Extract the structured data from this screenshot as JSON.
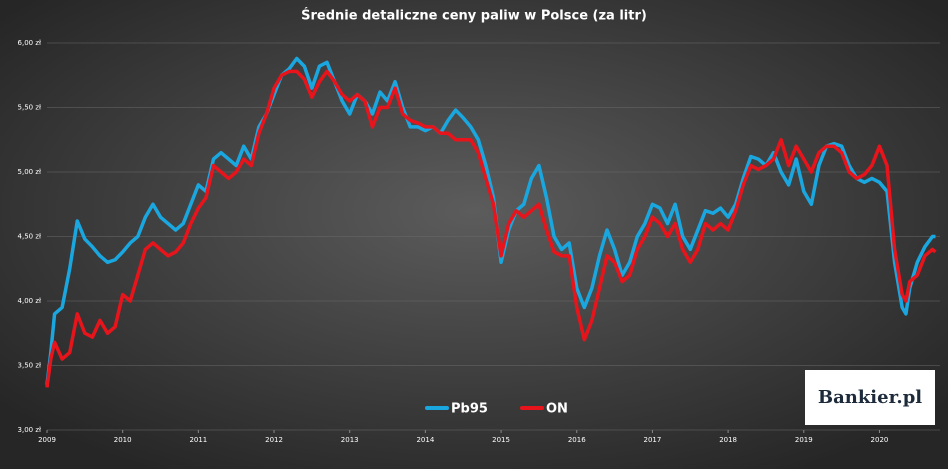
{
  "chart_data": {
    "type": "line",
    "title": "Średnie detaliczne ceny paliw w Polsce (za litr)",
    "watermark": "Bankier.pl",
    "x": [
      2009.0,
      2009.05,
      2009.1,
      2009.2,
      2009.3,
      2009.4,
      2009.5,
      2009.6,
      2009.7,
      2009.8,
      2009.9,
      2010.0,
      2010.1,
      2010.2,
      2010.3,
      2010.4,
      2010.5,
      2010.6,
      2010.7,
      2010.8,
      2010.9,
      2011.0,
      2011.1,
      2011.2,
      2011.3,
      2011.4,
      2011.5,
      2011.6,
      2011.7,
      2011.8,
      2011.9,
      2012.0,
      2012.1,
      2012.2,
      2012.3,
      2012.4,
      2012.5,
      2012.6,
      2012.7,
      2012.8,
      2012.9,
      2013.0,
      2013.1,
      2013.2,
      2013.3,
      2013.4,
      2013.5,
      2013.6,
      2013.7,
      2013.8,
      2013.9,
      2014.0,
      2014.1,
      2014.2,
      2014.3,
      2014.4,
      2014.5,
      2014.6,
      2014.7,
      2014.8,
      2014.9,
      2015.0,
      2015.1,
      2015.2,
      2015.3,
      2015.4,
      2015.5,
      2015.6,
      2015.7,
      2015.8,
      2015.9,
      2016.0,
      2016.1,
      2016.2,
      2016.3,
      2016.4,
      2016.5,
      2016.6,
      2016.7,
      2016.8,
      2016.9,
      2017.0,
      2017.1,
      2017.2,
      2017.3,
      2017.4,
      2017.5,
      2017.6,
      2017.7,
      2017.8,
      2017.9,
      2018.0,
      2018.1,
      2018.2,
      2018.3,
      2018.4,
      2018.5,
      2018.6,
      2018.7,
      2018.8,
      2018.9,
      2019.0,
      2019.1,
      2019.2,
      2019.3,
      2019.4,
      2019.5,
      2019.6,
      2019.7,
      2019.8,
      2019.9,
      2020.0,
      2020.1,
      2020.2,
      2020.3,
      2020.35,
      2020.4,
      2020.5,
      2020.6,
      2020.7,
      2020.74
    ],
    "series": [
      {
        "name": "Pb95",
        "color": "#1aa7e0",
        "values": [
          3.35,
          3.6,
          3.9,
          3.95,
          4.25,
          4.62,
          4.48,
          4.42,
          4.35,
          4.3,
          4.32,
          4.38,
          4.45,
          4.5,
          4.65,
          4.75,
          4.65,
          4.6,
          4.55,
          4.6,
          4.75,
          4.9,
          4.85,
          5.1,
          5.15,
          5.1,
          5.05,
          5.2,
          5.1,
          5.35,
          5.45,
          5.6,
          5.75,
          5.8,
          5.88,
          5.82,
          5.65,
          5.82,
          5.85,
          5.7,
          5.55,
          5.45,
          5.6,
          5.55,
          5.45,
          5.62,
          5.55,
          5.7,
          5.5,
          5.35,
          5.35,
          5.32,
          5.35,
          5.3,
          5.4,
          5.48,
          5.42,
          5.35,
          5.25,
          5.05,
          4.8,
          4.3,
          4.55,
          4.7,
          4.75,
          4.95,
          5.05,
          4.8,
          4.5,
          4.4,
          4.45,
          4.1,
          3.95,
          4.1,
          4.35,
          4.55,
          4.4,
          4.2,
          4.3,
          4.5,
          4.6,
          4.75,
          4.72,
          4.6,
          4.75,
          4.5,
          4.4,
          4.55,
          4.7,
          4.68,
          4.72,
          4.65,
          4.75,
          4.95,
          5.12,
          5.1,
          5.05,
          5.15,
          5.0,
          4.9,
          5.1,
          4.85,
          4.75,
          5.05,
          5.2,
          5.22,
          5.2,
          5.05,
          4.95,
          4.92,
          4.95,
          4.92,
          4.85,
          4.3,
          3.95,
          3.9,
          4.1,
          4.3,
          4.42,
          4.5,
          4.5
        ]
      },
      {
        "name": "ON",
        "color": "#e8141b",
        "values": [
          3.33,
          3.55,
          3.68,
          3.55,
          3.6,
          3.9,
          3.75,
          3.72,
          3.85,
          3.75,
          3.8,
          4.05,
          4.0,
          4.2,
          4.4,
          4.45,
          4.4,
          4.35,
          4.38,
          4.45,
          4.6,
          4.72,
          4.8,
          5.05,
          5.0,
          4.95,
          5.0,
          5.1,
          5.05,
          5.3,
          5.45,
          5.65,
          5.75,
          5.78,
          5.78,
          5.72,
          5.58,
          5.7,
          5.78,
          5.7,
          5.6,
          5.55,
          5.6,
          5.55,
          5.35,
          5.5,
          5.5,
          5.65,
          5.45,
          5.4,
          5.38,
          5.35,
          5.35,
          5.3,
          5.3,
          5.25,
          5.25,
          5.25,
          5.15,
          4.95,
          4.75,
          4.35,
          4.6,
          4.7,
          4.65,
          4.7,
          4.75,
          4.55,
          4.38,
          4.35,
          4.35,
          3.95,
          3.7,
          3.85,
          4.1,
          4.35,
          4.3,
          4.15,
          4.2,
          4.4,
          4.5,
          4.65,
          4.6,
          4.5,
          4.6,
          4.4,
          4.3,
          4.4,
          4.6,
          4.55,
          4.6,
          4.55,
          4.7,
          4.9,
          5.05,
          5.02,
          5.05,
          5.1,
          5.25,
          5.05,
          5.2,
          5.1,
          5.0,
          5.15,
          5.2,
          5.2,
          5.15,
          5.0,
          4.95,
          4.98,
          5.05,
          5.2,
          5.05,
          4.4,
          4.05,
          4.0,
          4.15,
          4.2,
          4.35,
          4.4,
          4.38
        ]
      }
    ],
    "xlim": [
      2009,
      2020.8
    ],
    "xticks": [
      2009,
      2010,
      2011,
      2012,
      2013,
      2014,
      2015,
      2016,
      2017,
      2018,
      2019,
      2020
    ],
    "ylim": [
      3,
      6
    ],
    "yticks": [
      {
        "value": 3,
        "label": "3,00 zł"
      },
      {
        "value": 3.5,
        "label": "3,50 zł"
      },
      {
        "value": 4,
        "label": "4,00 zł"
      },
      {
        "value": 4.5,
        "label": "4,50 zł"
      },
      {
        "value": 5,
        "label": "5,00 zł"
      },
      {
        "value": 5.5,
        "label": "5,50 zł"
      },
      {
        "value": 6,
        "label": "6,00 zł"
      }
    ],
    "grid": true
  }
}
